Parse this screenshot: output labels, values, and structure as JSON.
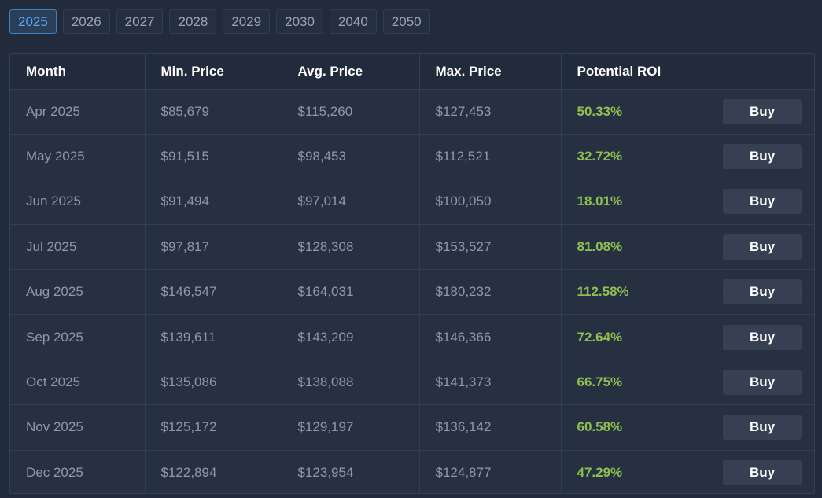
{
  "years": [
    "2025",
    "2026",
    "2027",
    "2028",
    "2029",
    "2030",
    "2040",
    "2050"
  ],
  "active_year": "2025",
  "table": {
    "headers": {
      "month": "Month",
      "min_price": "Min. Price",
      "avg_price": "Avg. Price",
      "max_price": "Max. Price",
      "roi": "Potential ROI"
    },
    "buy_label": "Buy",
    "rows": [
      {
        "month": "Apr 2025",
        "min": "$85,679",
        "avg": "$115,260",
        "max": "$127,453",
        "roi": "50.33%"
      },
      {
        "month": "May 2025",
        "min": "$91,515",
        "avg": "$98,453",
        "max": "$112,521",
        "roi": "32.72%"
      },
      {
        "month": "Jun 2025",
        "min": "$91,494",
        "avg": "$97,014",
        "max": "$100,050",
        "roi": "18.01%"
      },
      {
        "month": "Jul 2025",
        "min": "$97,817",
        "avg": "$128,308",
        "max": "$153,527",
        "roi": "81.08%"
      },
      {
        "month": "Aug 2025",
        "min": "$146,547",
        "avg": "$164,031",
        "max": "$180,232",
        "roi": "112.58%"
      },
      {
        "month": "Sep 2025",
        "min": "$139,611",
        "avg": "$143,209",
        "max": "$146,366",
        "roi": "72.64%"
      },
      {
        "month": "Oct 2025",
        "min": "$135,086",
        "avg": "$138,088",
        "max": "$141,373",
        "roi": "66.75%"
      },
      {
        "month": "Nov 2025",
        "min": "$125,172",
        "avg": "$129,197",
        "max": "$136,142",
        "roi": "60.58%"
      },
      {
        "month": "Dec 2025",
        "min": "$122,894",
        "avg": "$123,954",
        "max": "$124,877",
        "roi": "47.29%"
      }
    ]
  },
  "colors": {
    "background": "#222b3b",
    "active_tab": "#58a4ef",
    "roi_positive": "#8fbf52"
  }
}
